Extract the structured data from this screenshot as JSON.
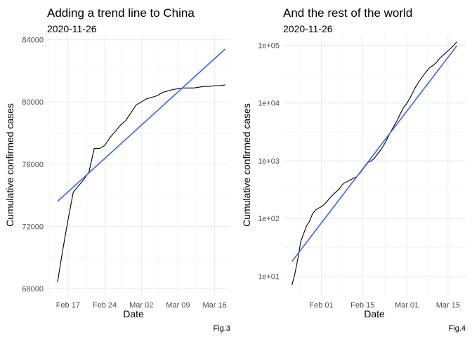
{
  "panels": [
    {
      "title": "Adding a trend line to China",
      "subtitle": "2020-11-26",
      "caption": "Fig.3"
    },
    {
      "title": "And the rest of the world",
      "subtitle": "2020-11-26",
      "caption": "Fig.4"
    }
  ],
  "chart_data": [
    {
      "type": "line",
      "title": "Adding a trend line to China",
      "subtitle": "2020-11-26",
      "xlabel": "Date",
      "ylabel": "Cumulative confirmed cases",
      "x_type": "date",
      "xlim": [
        "2020-02-13",
        "2020-03-19"
      ],
      "ylim": [
        67500,
        84300
      ],
      "y_scale": "linear",
      "x_ticks": [
        {
          "date": "2020-02-17",
          "label": "Feb 17"
        },
        {
          "date": "2020-02-24",
          "label": "Feb 24"
        },
        {
          "date": "2020-03-02",
          "label": "Mar 02"
        },
        {
          "date": "2020-03-09",
          "label": "Mar 09"
        },
        {
          "date": "2020-03-16",
          "label": "Mar 16"
        }
      ],
      "y_ticks": [
        {
          "value": 68000,
          "label": "68000"
        },
        {
          "value": 72000,
          "label": "72000"
        },
        {
          "value": 76000,
          "label": "76000"
        },
        {
          "value": 80000,
          "label": "80000"
        },
        {
          "value": 84000,
          "label": "84000"
        }
      ],
      "grid": true,
      "series": [
        {
          "color": "#000000",
          "x": [
            "2020-02-15",
            "2020-02-16",
            "2020-02-17",
            "2020-02-18",
            "2020-02-19",
            "2020-02-20",
            "2020-02-21",
            "2020-02-22",
            "2020-02-23",
            "2020-02-24",
            "2020-02-25",
            "2020-02-26",
            "2020-02-27",
            "2020-02-28",
            "2020-02-29",
            "2020-03-01",
            "2020-03-02",
            "2020-03-03",
            "2020-03-04",
            "2020-03-05",
            "2020-03-06",
            "2020-03-07",
            "2020-03-08",
            "2020-03-09",
            "2020-03-10",
            "2020-03-11",
            "2020-03-12",
            "2020-03-13",
            "2020-03-14",
            "2020-03-15",
            "2020-03-16",
            "2020-03-17",
            "2020-03-18"
          ],
          "y": [
            68400,
            70500,
            72400,
            74200,
            74600,
            75000,
            75500,
            77000,
            77000,
            77200,
            77700,
            78100,
            78500,
            78800,
            79300,
            79800,
            80000,
            80200,
            80300,
            80400,
            80600,
            80700,
            80800,
            80850,
            80900,
            80900,
            80900,
            80950,
            81000,
            81000,
            81050,
            81050,
            81100
          ]
        },
        {
          "color": "#3366ff",
          "x": [
            "2020-02-15",
            "2020-03-18"
          ],
          "y": [
            73600,
            83400
          ]
        }
      ]
    },
    {
      "type": "line",
      "title": "And the rest of the world",
      "subtitle": "2020-11-26",
      "xlabel": "Date",
      "ylabel": "Cumulative confirmed cases",
      "x_type": "date",
      "xlim": [
        "2020-01-19",
        "2020-03-21"
      ],
      "ylim": [
        4.5,
        150000
      ],
      "y_scale": "log10",
      "x_ticks": [
        {
          "date": "2020-02-01",
          "label": "Feb 01"
        },
        {
          "date": "2020-02-15",
          "label": "Feb 15"
        },
        {
          "date": "2020-03-01",
          "label": "Mar 01"
        },
        {
          "date": "2020-03-15",
          "label": "Mar 15"
        }
      ],
      "y_ticks": [
        {
          "value": 10,
          "label": "1e+01"
        },
        {
          "value": 100,
          "label": "1e+02"
        },
        {
          "value": 1000,
          "label": "1e+03"
        },
        {
          "value": 10000,
          "label": "1e+04"
        },
        {
          "value": 100000,
          "label": "1e+05"
        }
      ],
      "grid": true,
      "series": [
        {
          "color": "#000000",
          "x": [
            "2020-01-22",
            "2020-01-23",
            "2020-01-24",
            "2020-01-25",
            "2020-01-26",
            "2020-01-27",
            "2020-01-28",
            "2020-01-29",
            "2020-01-30",
            "2020-01-31",
            "2020-02-01",
            "2020-02-02",
            "2020-02-03",
            "2020-02-04",
            "2020-02-05",
            "2020-02-06",
            "2020-02-07",
            "2020-02-08",
            "2020-02-09",
            "2020-02-10",
            "2020-02-11",
            "2020-02-12",
            "2020-02-13",
            "2020-02-14",
            "2020-02-15",
            "2020-02-16",
            "2020-02-17",
            "2020-02-18",
            "2020-02-19",
            "2020-02-20",
            "2020-02-21",
            "2020-02-22",
            "2020-02-23",
            "2020-02-24",
            "2020-02-25",
            "2020-02-26",
            "2020-02-27",
            "2020-02-28",
            "2020-02-29",
            "2020-03-01",
            "2020-03-02",
            "2020-03-03",
            "2020-03-04",
            "2020-03-05",
            "2020-03-06",
            "2020-03-07",
            "2020-03-08",
            "2020-03-09",
            "2020-03-10",
            "2020-03-11",
            "2020-03-12",
            "2020-03-13",
            "2020-03-14",
            "2020-03-15",
            "2020-03-16",
            "2020-03-17",
            "2020-03-18"
          ],
          "y": [
            7,
            11,
            20,
            40,
            55,
            75,
            90,
            120,
            140,
            150,
            160,
            175,
            200,
            230,
            260,
            290,
            320,
            380,
            420,
            440,
            470,
            500,
            530,
            600,
            700,
            820,
            950,
            1000,
            1100,
            1300,
            1500,
            1800,
            2200,
            2800,
            3500,
            4300,
            5300,
            6800,
            8500,
            9800,
            12000,
            15000,
            19000,
            23000,
            27000,
            32000,
            37000,
            42000,
            45000,
            50000,
            58000,
            65000,
            72000,
            80000,
            89000,
            100000,
            115000
          ]
        },
        {
          "color": "#3366ff",
          "x": [
            "2020-01-22",
            "2020-03-18"
          ],
          "y": [
            18,
            98000
          ]
        }
      ]
    }
  ]
}
